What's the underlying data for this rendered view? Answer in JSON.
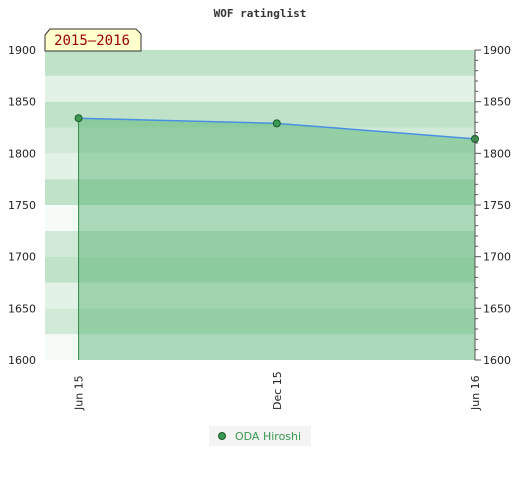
{
  "chart_data": {
    "type": "area",
    "title": "WOF ratinglist",
    "season_label": "2015–2016",
    "ylim": [
      1600,
      1900
    ],
    "yticks": [
      1600,
      1650,
      1700,
      1750,
      1800,
      1850,
      1900
    ],
    "x_domain": [
      "2015-05-15",
      "2016-06-15"
    ],
    "x": [
      "2015-06-15",
      "2015-12-15",
      "2016-06-15"
    ],
    "xtick_labels": [
      "Jun 15",
      "Dec 15",
      "Jun 16"
    ],
    "series": [
      {
        "name": "ODA Hiroshi",
        "values": [
          1834,
          1829,
          1814
        ]
      }
    ],
    "legend_position": "bottom-center",
    "grid": false,
    "colors": {
      "line": "#4a90e2",
      "area": "#4caf6a",
      "point": "#3a9a52",
      "legend_text": "#3a9a52",
      "season_box": "#ffffcc",
      "season_text": "#990000"
    }
  }
}
